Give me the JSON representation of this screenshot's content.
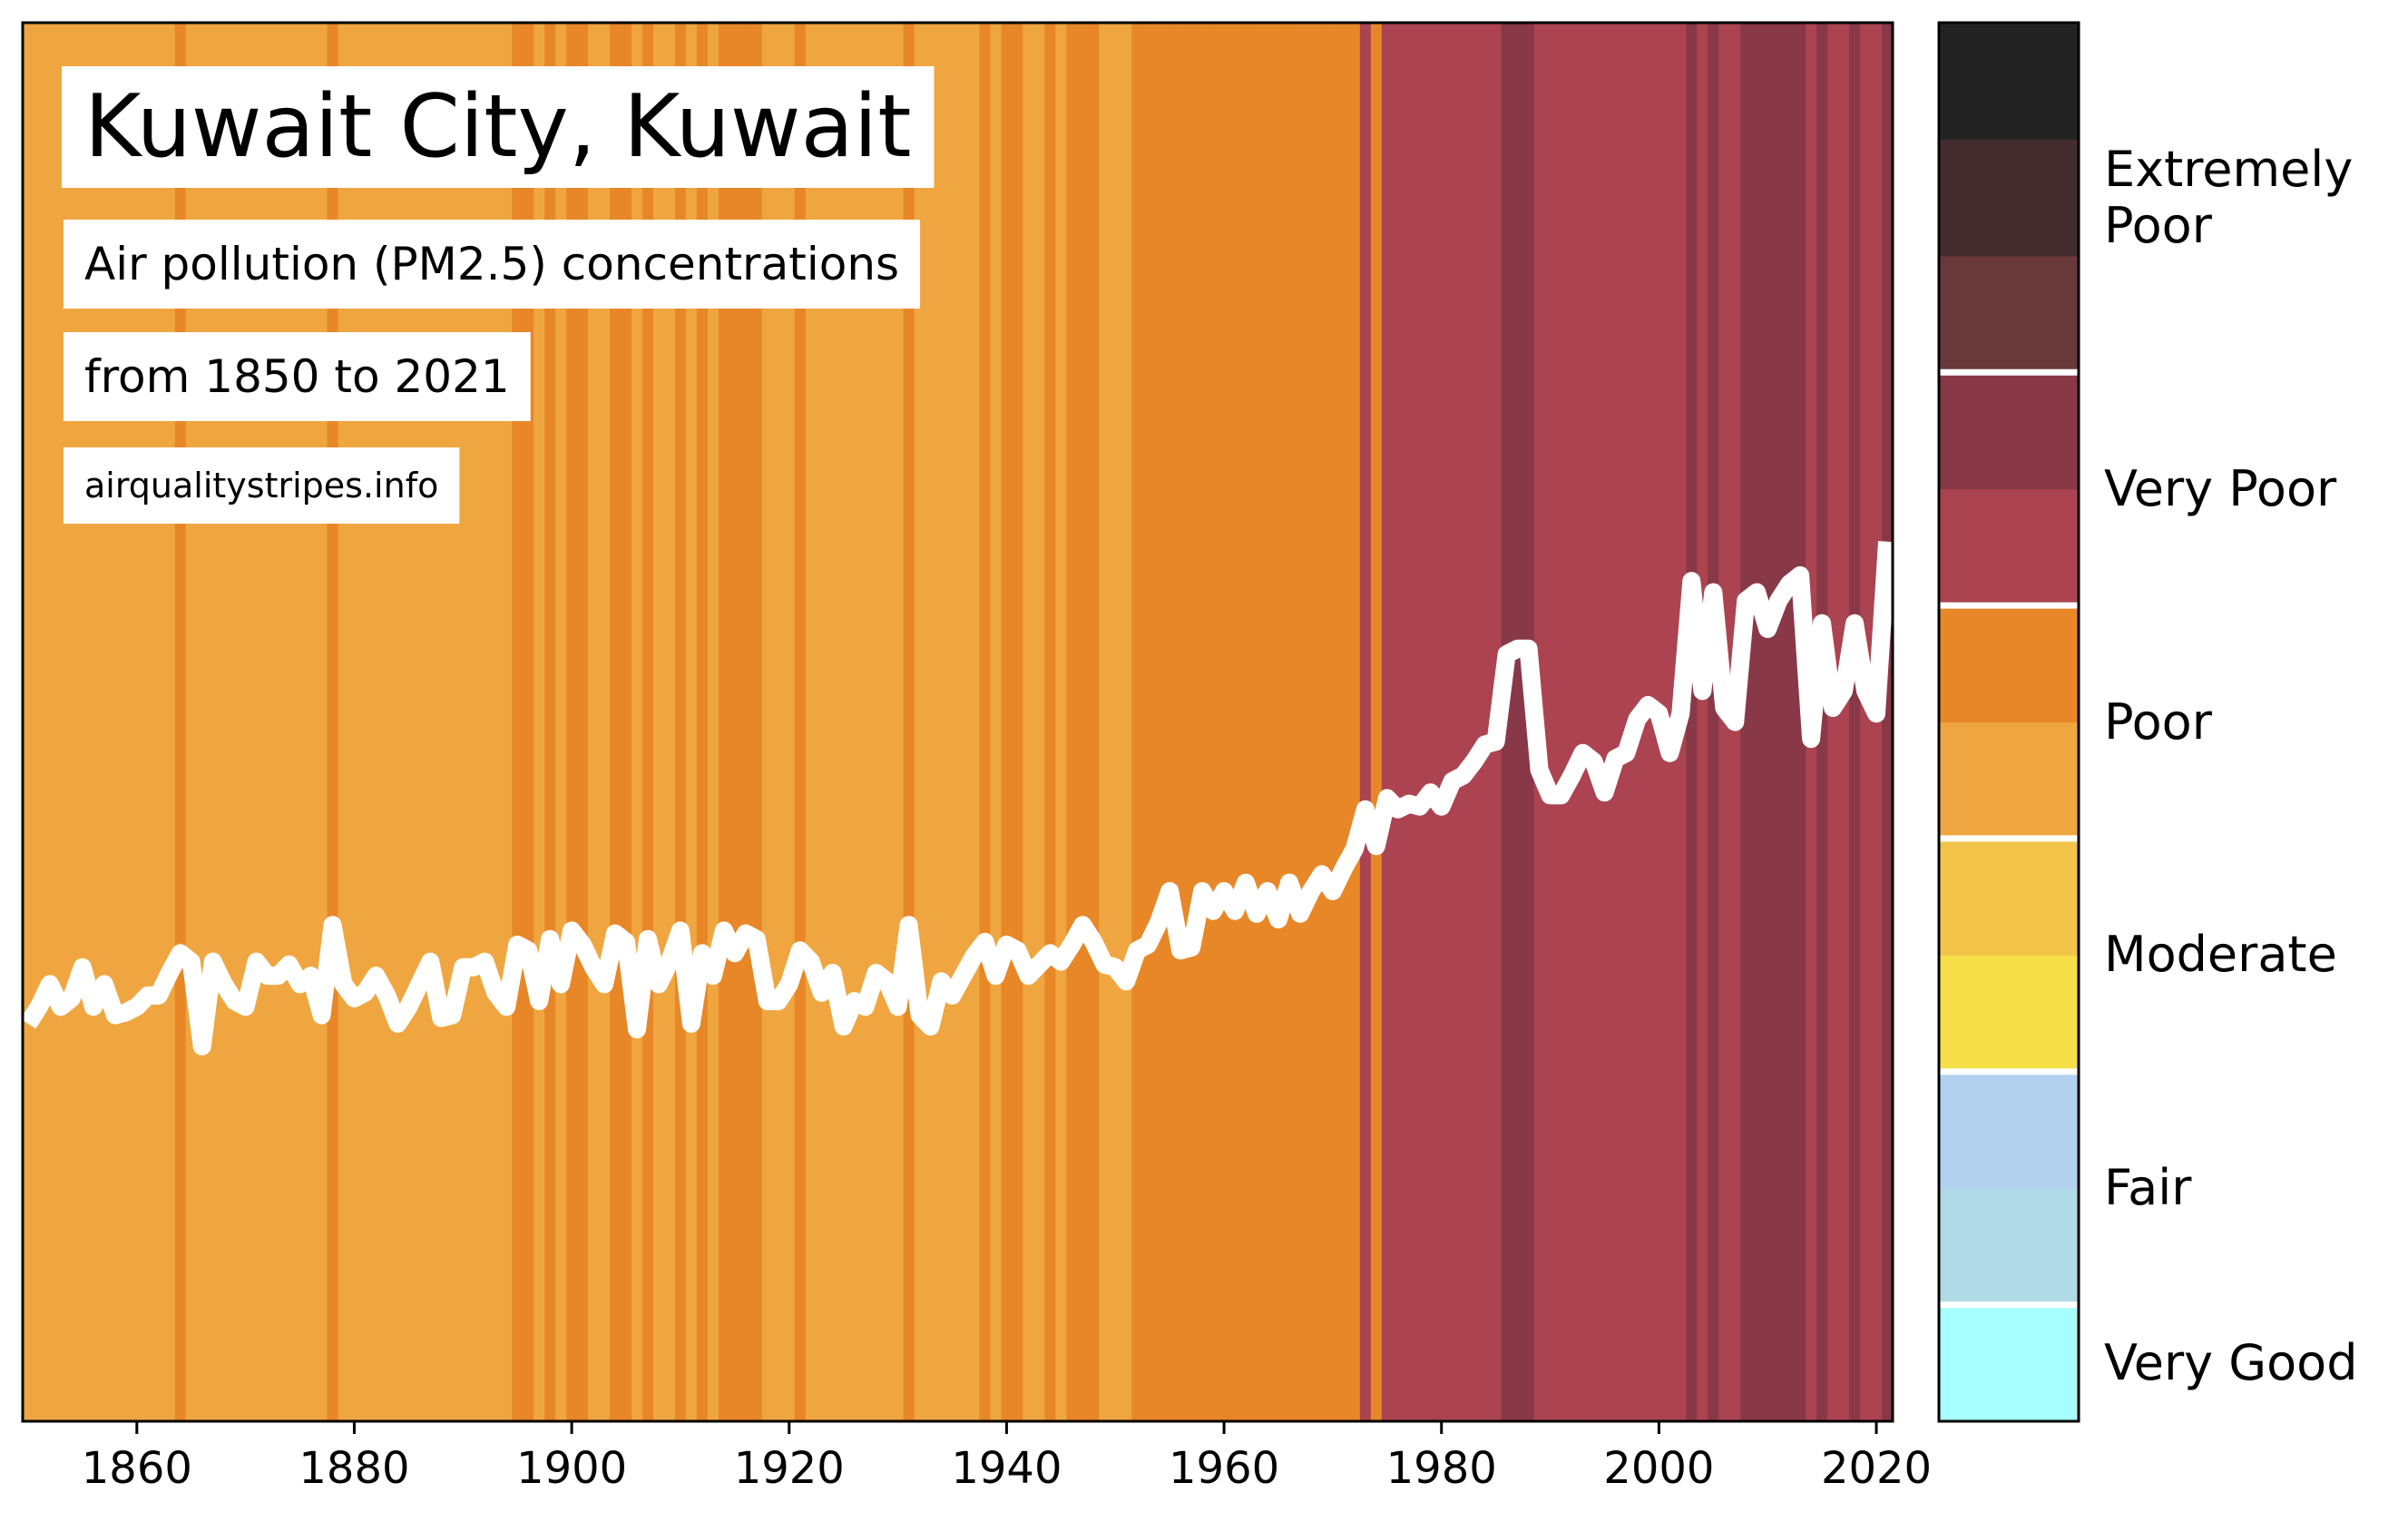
{
  "chart_data": {
    "type": "stripes",
    "title": "Kuwait City, Kuwait",
    "subtitle": "Air pollution (PM2.5) concentrations",
    "period": "from 1850 to 2021",
    "source": "airqualitystripes.info",
    "x": [
      1850,
      1851,
      1852,
      1853,
      1854,
      1855,
      1856,
      1857,
      1858,
      1859,
      1860,
      1861,
      1862,
      1863,
      1864,
      1865,
      1866,
      1867,
      1868,
      1869,
      1870,
      1871,
      1872,
      1873,
      1874,
      1875,
      1876,
      1877,
      1878,
      1879,
      1880,
      1881,
      1882,
      1883,
      1884,
      1885,
      1886,
      1887,
      1888,
      1889,
      1890,
      1891,
      1892,
      1893,
      1894,
      1895,
      1896,
      1897,
      1898,
      1899,
      1900,
      1901,
      1902,
      1903,
      1904,
      1905,
      1906,
      1907,
      1908,
      1909,
      1910,
      1911,
      1912,
      1913,
      1914,
      1915,
      1916,
      1917,
      1918,
      1919,
      1920,
      1921,
      1922,
      1923,
      1924,
      1925,
      1926,
      1927,
      1928,
      1929,
      1930,
      1931,
      1932,
      1933,
      1934,
      1935,
      1936,
      1937,
      1938,
      1939,
      1940,
      1941,
      1942,
      1943,
      1944,
      1945,
      1946,
      1947,
      1948,
      1949,
      1950,
      1951,
      1952,
      1953,
      1954,
      1955,
      1956,
      1957,
      1958,
      1959,
      1960,
      1961,
      1962,
      1963,
      1964,
      1965,
      1966,
      1967,
      1968,
      1969,
      1970,
      1971,
      1972,
      1973,
      1974,
      1975,
      1976,
      1977,
      1978,
      1979,
      1980,
      1981,
      1982,
      1983,
      1984,
      1985,
      1986,
      1987,
      1988,
      1989,
      1990,
      1991,
      1992,
      1993,
      1994,
      1995,
      1996,
      1997,
      1998,
      1999,
      2000,
      2001,
      2002,
      2003,
      2004,
      2005,
      2006,
      2007,
      2008,
      2009,
      2010,
      2011,
      2012,
      2013,
      2014,
      2015,
      2016,
      2017,
      2018,
      2019,
      2020,
      2021
    ],
    "values": [
      27.5,
      28.1,
      28.9,
      28.1,
      28.4,
      29.5,
      28.1,
      28.9,
      27.8,
      27.9,
      28.1,
      28.5,
      28.5,
      29.3,
      30.0,
      29.7,
      26.7,
      29.7,
      28.9,
      28.3,
      28.1,
      29.7,
      29.2,
      29.2,
      29.6,
      28.9,
      29.2,
      27.8,
      31.0,
      28.9,
      28.4,
      28.6,
      29.2,
      28.5,
      27.5,
      28.1,
      28.9,
      29.7,
      27.7,
      27.8,
      29.5,
      29.5,
      29.7,
      28.6,
      28.1,
      30.3,
      30.1,
      28.3,
      30.5,
      28.9,
      30.8,
      30.3,
      29.5,
      28.9,
      30.7,
      30.4,
      27.3,
      30.5,
      28.9,
      29.7,
      30.8,
      27.5,
      30.0,
      29.2,
      30.8,
      30.0,
      30.7,
      30.5,
      28.3,
      28.3,
      28.9,
      30.1,
      29.7,
      28.6,
      29.3,
      27.4,
      28.3,
      28.1,
      29.3,
      29.0,
      28.1,
      31.0,
      27.8,
      27.4,
      29.0,
      28.5,
      29.2,
      29.9,
      30.4,
      29.2,
      30.3,
      30.1,
      29.2,
      29.6,
      30.0,
      29.7,
      30.3,
      31.0,
      30.4,
      29.6,
      29.5,
      29.0,
      30.1,
      30.3,
      31.1,
      32.2,
      30.1,
      30.2,
      32.2,
      31.5,
      32.2,
      31.5,
      32.5,
      31.4,
      32.2,
      31.2,
      32.5,
      31.4,
      32.2,
      32.8,
      32.2,
      33.0,
      33.7,
      35.1,
      33.8,
      35.5,
      35.1,
      35.3,
      35.2,
      35.7,
      35.2,
      36.1,
      36.3,
      36.8,
      37.4,
      37.5,
      40.6,
      40.8,
      40.8,
      36.5,
      35.6,
      35.6,
      36.3,
      37.1,
      36.8,
      35.7,
      36.9,
      37.1,
      38.3,
      38.8,
      38.5,
      37.1,
      38.5,
      43.2,
      39.3,
      42.8,
      38.7,
      38.2,
      42.5,
      42.8,
      41.5,
      42.5,
      43.1,
      43.4,
      37.6,
      41.7,
      38.7,
      39.3,
      41.7,
      39.3,
      38.5,
      44.6
    ],
    "xlim": [
      1849.5,
      2021.5
    ],
    "ylim": [
      13.4,
      63.0
    ],
    "xticks": [
      1860,
      1880,
      1900,
      1920,
      1940,
      1960,
      1980,
      2000,
      2020
    ],
    "line_color": "#ffffff",
    "colorbar": {
      "bounds": [
        0,
        5,
        10,
        15,
        20,
        25,
        30,
        35,
        40,
        45,
        50,
        55,
        60
      ],
      "colors": [
        "#a8ffff",
        "#b0dae6",
        "#b2d1ee",
        "#f7df47",
        "#f2c44a",
        "#f0a640",
        "#e88727",
        "#ab4450",
        "#883846",
        "#68383a",
        "#442c2f",
        "#232323"
      ],
      "levels": [
        {
          "label": "Very Good",
          "range": [
            0,
            5
          ]
        },
        {
          "label": "Fair",
          "range": [
            5,
            15
          ]
        },
        {
          "label": "Moderate",
          "range": [
            15,
            25
          ]
        },
        {
          "label": "Poor",
          "range": [
            25,
            35
          ]
        },
        {
          "label": "Very Poor",
          "range": [
            35,
            45
          ]
        },
        {
          "label": "Extremely Poor",
          "range": [
            45,
            60
          ]
        }
      ]
    }
  }
}
